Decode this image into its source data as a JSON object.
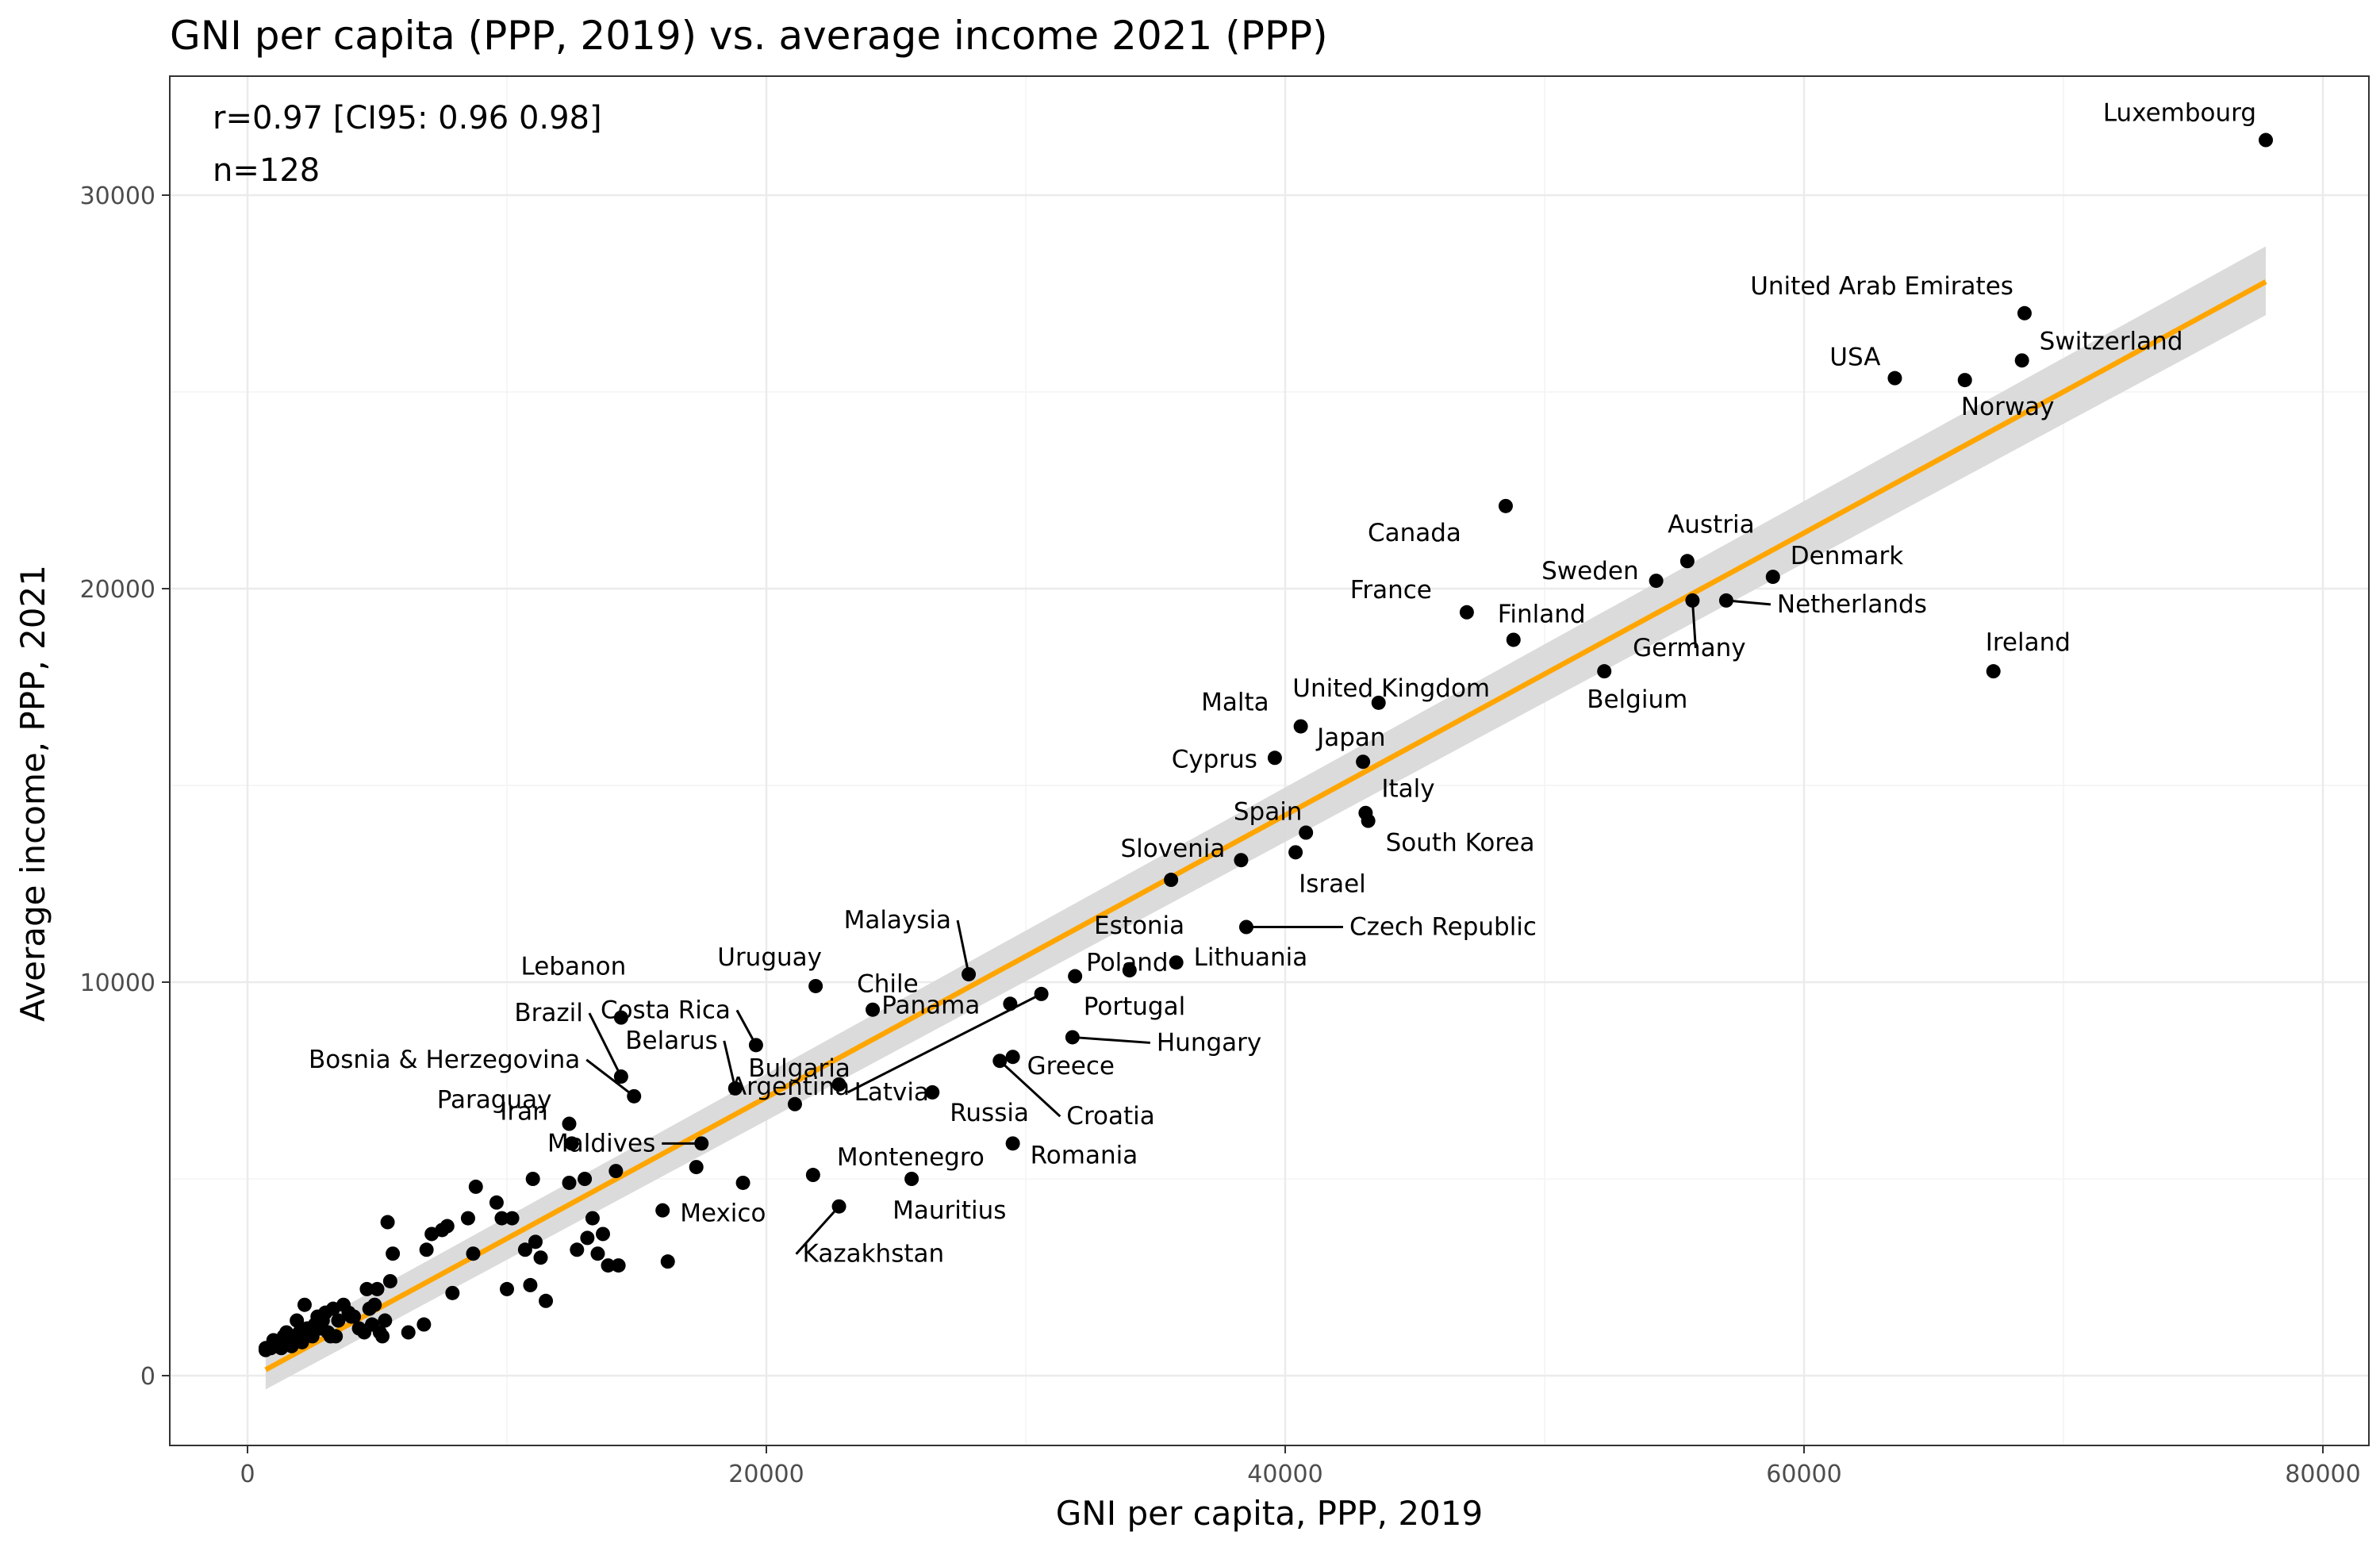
{
  "chart_data": {
    "type": "scatter",
    "title": "GNI per capita (PPP, 2019) vs. average income 2021 (PPP)",
    "xlabel": "GNI per capita, PPP, 2019",
    "ylabel": "Average income, PPP, 2021",
    "xlim": [
      -3000,
      81000
    ],
    "ylim": [
      -1800,
      33000
    ],
    "x_ticks": [
      0,
      20000,
      40000,
      60000,
      80000
    ],
    "y_ticks": [
      0,
      10000,
      20000,
      30000
    ],
    "grid": true,
    "annotations": [
      "r=0.97 [CI95: 0.96 0.98]",
      "n=128"
    ],
    "colors": {
      "regression_line": "#FFA500",
      "confidence_band": "#D9D9D9",
      "points": "#000000"
    },
    "regression": {
      "x": [
        700,
        77800
      ],
      "y": [
        150,
        27800
      ],
      "ci_lower": [
        -350,
        26950
      ],
      "ci_upper": [
        650,
        28700
      ]
    },
    "labeled_points": [
      {
        "name": "Luxembourg",
        "x": 77800,
        "y": 31400
      },
      {
        "name": "United Arab Emirates",
        "x": 68500,
        "y": 27000
      },
      {
        "name": "Switzerland",
        "x": 68400,
        "y": 25800
      },
      {
        "name": "USA",
        "x": 63500,
        "y": 25350
      },
      {
        "name": "Norway",
        "x": 66200,
        "y": 25300
      },
      {
        "name": "Canada",
        "x": 48500,
        "y": 22100
      },
      {
        "name": "Austria",
        "x": 55500,
        "y": 20700
      },
      {
        "name": "Sweden",
        "x": 54300,
        "y": 20200
      },
      {
        "name": "Denmark",
        "x": 58800,
        "y": 20300
      },
      {
        "name": "France",
        "x": 47000,
        "y": 19400
      },
      {
        "name": "Netherlands",
        "x": 57000,
        "y": 19700
      },
      {
        "name": "Germany",
        "x": 55700,
        "y": 19700
      },
      {
        "name": "Finland",
        "x": 48800,
        "y": 18700
      },
      {
        "name": "Ireland",
        "x": 67300,
        "y": 17900
      },
      {
        "name": "Belgium",
        "x": 52300,
        "y": 17900
      },
      {
        "name": "United Kingdom",
        "x": 43600,
        "y": 17100
      },
      {
        "name": "Malta",
        "x": 40600,
        "y": 16500
      },
      {
        "name": "Japan",
        "x": 43000,
        "y": 15600
      },
      {
        "name": "Cyprus",
        "x": 39600,
        "y": 15700
      },
      {
        "name": "Italy",
        "x": 43100,
        "y": 14300
      },
      {
        "name": "Spain",
        "x": 40800,
        "y": 13800
      },
      {
        "name": "South Korea",
        "x": 43200,
        "y": 14100
      },
      {
        "name": "Israel",
        "x": 40400,
        "y": 13300
      },
      {
        "name": "Slovenia",
        "x": 38300,
        "y": 13100
      },
      {
        "name": "Estonia",
        "x": 35600,
        "y": 12600
      },
      {
        "name": "Czech Republic",
        "x": 38500,
        "y": 11400
      },
      {
        "name": "Lithuania",
        "x": 35800,
        "y": 10500
      },
      {
        "name": "Malaysia",
        "x": 27800,
        "y": 10200
      },
      {
        "name": "Poland",
        "x": 31900,
        "y": 10150
      },
      {
        "name": "Uruguay",
        "x": 21900,
        "y": 9900
      },
      {
        "name": "Chile",
        "x": 24100,
        "y": 9300
      },
      {
        "name": "Portugal",
        "x": 34000,
        "y": 10300
      },
      {
        "name": "Lebanon",
        "x": 14400,
        "y": 9100
      },
      {
        "name": "Costa Rica",
        "x": 19600,
        "y": 8400
      },
      {
        "name": "Panama",
        "x": 29400,
        "y": 9450
      },
      {
        "name": "Latvia",
        "x": 30600,
        "y": 9700
      },
      {
        "name": "Brazil",
        "x": 14400,
        "y": 7600
      },
      {
        "name": "Hungary",
        "x": 31800,
        "y": 8600
      },
      {
        "name": "Bosnia & Herzegovina",
        "x": 14900,
        "y": 7100
      },
      {
        "name": "Belarus",
        "x": 18800,
        "y": 7300
      },
      {
        "name": "Bulgaria",
        "x": 22800,
        "y": 7400
      },
      {
        "name": "Greece",
        "x": 29500,
        "y": 8100
      },
      {
        "name": "Croatia",
        "x": 29000,
        "y": 8000
      },
      {
        "name": "Russia",
        "x": 26400,
        "y": 7200
      },
      {
        "name": "Paraguay",
        "x": 12400,
        "y": 6400
      },
      {
        "name": "Argentina",
        "x": 21100,
        "y": 6900
      },
      {
        "name": "Iran",
        "x": 12500,
        "y": 5900
      },
      {
        "name": "Maldives",
        "x": 17500,
        "y": 5900
      },
      {
        "name": "Montenegro",
        "x": 21800,
        "y": 5100
      },
      {
        "name": "Romania",
        "x": 29500,
        "y": 5900
      },
      {
        "name": "Mauritius",
        "x": 25600,
        "y": 5000
      },
      {
        "name": "Mexico",
        "x": 16000,
        "y": 4200
      },
      {
        "name": "Kazakhstan",
        "x": 22800,
        "y": 4300
      }
    ],
    "unlabeled_points": [
      [
        700,
        650
      ],
      [
        900,
        700
      ],
      [
        1000,
        900
      ],
      [
        1200,
        800
      ],
      [
        1300,
        700
      ],
      [
        1400,
        1000
      ],
      [
        1500,
        1100
      ],
      [
        1600,
        900
      ],
      [
        1700,
        750
      ],
      [
        1800,
        1000
      ],
      [
        1900,
        950
      ],
      [
        2000,
        1100
      ],
      [
        2100,
        850
      ],
      [
        2200,
        1800
      ],
      [
        2300,
        1200
      ],
      [
        2500,
        1000
      ],
      [
        2600,
        1300
      ],
      [
        2800,
        1200
      ],
      [
        2900,
        1400
      ],
      [
        3000,
        1600
      ],
      [
        3100,
        1100
      ],
      [
        3300,
        1700
      ],
      [
        3400,
        1000
      ],
      [
        3500,
        1400
      ],
      [
        3700,
        1800
      ],
      [
        3900,
        1600
      ],
      [
        4100,
        1500
      ],
      [
        4300,
        1200
      ],
      [
        4500,
        1100
      ],
      [
        4600,
        2200
      ],
      [
        4700,
        1700
      ],
      [
        4800,
        1300
      ],
      [
        4900,
        1800
      ],
      [
        5000,
        2200
      ],
      [
        5100,
        1100
      ],
      [
        5200,
        1000
      ],
      [
        5300,
        1400
      ],
      [
        5400,
        3900
      ],
      [
        5500,
        2400
      ],
      [
        5600,
        3100
      ],
      [
        6200,
        1100
      ],
      [
        6800,
        1300
      ],
      [
        6900,
        3200
      ],
      [
        7100,
        3600
      ],
      [
        7500,
        3700
      ],
      [
        7700,
        3800
      ],
      [
        7900,
        2100
      ],
      [
        8500,
        4000
      ],
      [
        8700,
        3100
      ],
      [
        8800,
        4800
      ],
      [
        9600,
        4400
      ],
      [
        9800,
        4000
      ],
      [
        10000,
        2200
      ],
      [
        10200,
        4000
      ],
      [
        10700,
        3200
      ],
      [
        10900,
        2300
      ],
      [
        11000,
        5000
      ],
      [
        11100,
        3400
      ],
      [
        11300,
        3000
      ],
      [
        11500,
        1900
      ],
      [
        12400,
        4900
      ],
      [
        12700,
        3200
      ],
      [
        13000,
        5000
      ],
      [
        13100,
        3500
      ],
      [
        13300,
        4000
      ],
      [
        13500,
        3100
      ],
      [
        13700,
        3600
      ],
      [
        13900,
        2800
      ],
      [
        14300,
        2800
      ],
      [
        14200,
        5200
      ],
      [
        16200,
        2900
      ],
      [
        17300,
        5300
      ],
      [
        19100,
        4900
      ],
      [
        1900,
        1400
      ],
      [
        2700,
        1500
      ],
      [
        3200,
        1000
      ],
      [
        4000,
        1500
      ],
      [
        700,
        700
      ]
    ]
  }
}
